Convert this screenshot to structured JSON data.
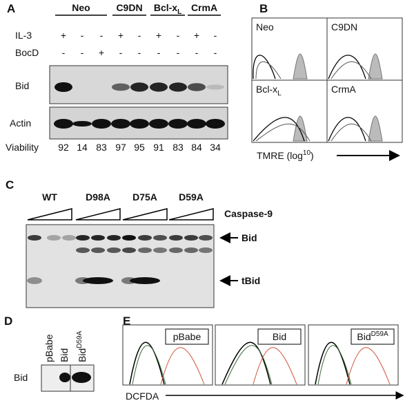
{
  "panel_a": {
    "label": "A",
    "groups": [
      {
        "name": "Neo"
      },
      {
        "name": "C9DN"
      },
      {
        "name": "Bcl-x",
        "sub": "L"
      },
      {
        "name": "CrmA"
      }
    ],
    "rows": [
      {
        "label": "IL-3",
        "signs": [
          "+",
          "-",
          "-",
          "+",
          "-",
          "+",
          "-",
          "+",
          "-"
        ]
      },
      {
        "label": "BocD",
        "signs": [
          "-",
          "-",
          "+",
          "-",
          "-",
          "-",
          "-",
          "-",
          "-"
        ]
      }
    ],
    "blots": [
      "Bid",
      "Actin"
    ],
    "viability_label": "Viability",
    "viability": [
      92,
      14,
      83,
      97,
      95,
      91,
      83,
      84,
      34
    ]
  },
  "panel_b": {
    "label": "B",
    "plots": [
      {
        "name": "Neo"
      },
      {
        "name": "C9DN"
      },
      {
        "name": "Bcl-x",
        "sub": "L"
      },
      {
        "name": "CrmA"
      }
    ],
    "axis": {
      "text": "TMRE (log",
      "sup": "10",
      "end": ")"
    }
  },
  "panel_c": {
    "label": "C",
    "groups": [
      "WT",
      "D98A",
      "D75A",
      "D59A"
    ],
    "treatment": "Caspase-9",
    "bands": [
      "Bid",
      "tBid"
    ]
  },
  "panel_d": {
    "label": "D",
    "lanes": [
      {
        "name": "pBabe"
      },
      {
        "name": "Bid"
      },
      {
        "name": "Bid",
        "sup": "D59A"
      }
    ],
    "blot": "Bid"
  },
  "panel_e": {
    "label": "E",
    "plots": [
      {
        "name": "pBabe"
      },
      {
        "name": "Bid"
      },
      {
        "name": "Bid",
        "sup": "D59A"
      }
    ],
    "axis": "DCFDA"
  }
}
